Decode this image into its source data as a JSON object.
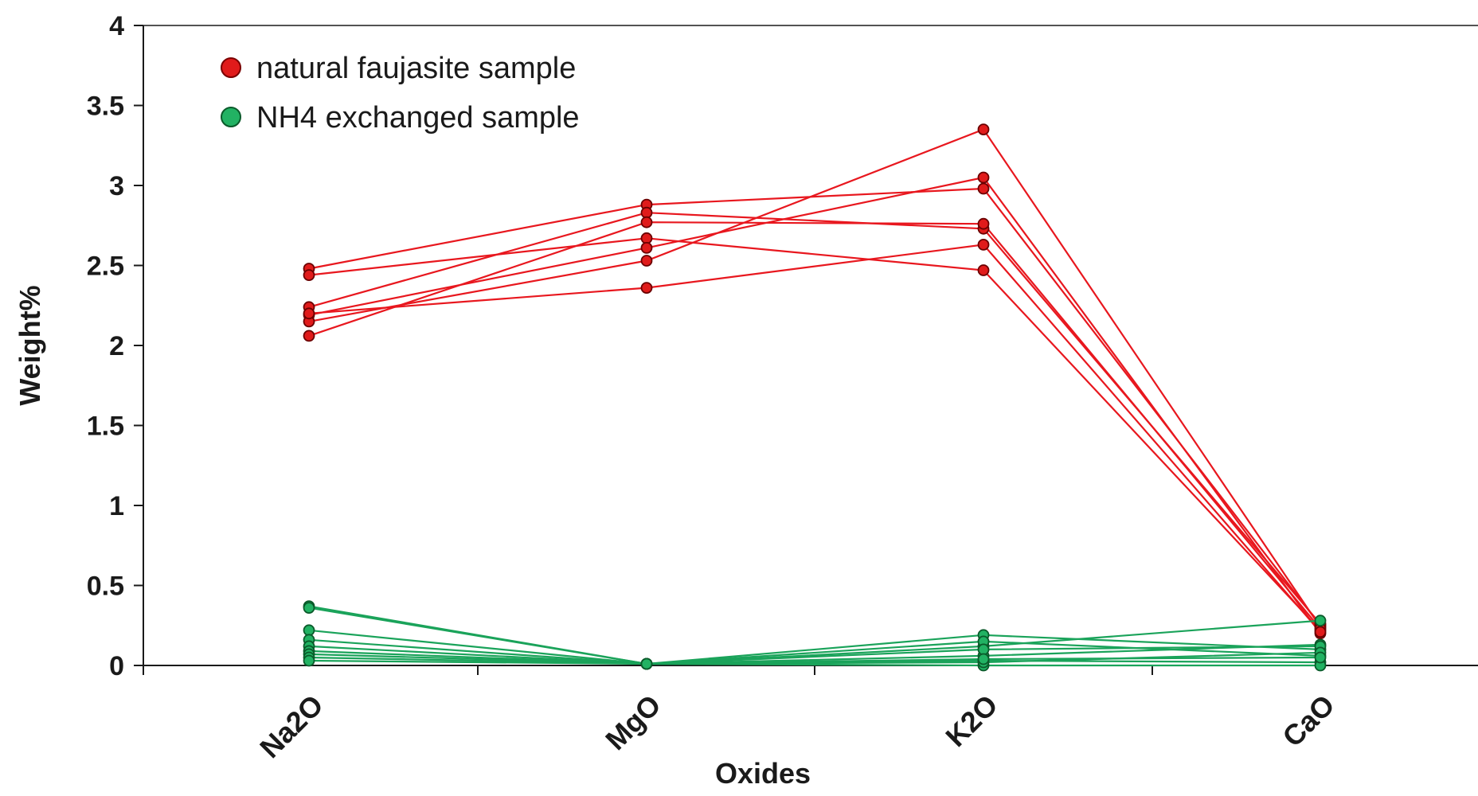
{
  "chart_data": {
    "type": "line",
    "xlabel": "Oxides",
    "ylabel": "Weight%",
    "categories": [
      "Na2O",
      "MgO",
      "K2O",
      "CaO"
    ],
    "ylim": [
      0,
      4
    ],
    "yticks": [
      "0",
      "0.5",
      "1",
      "1.5",
      "2",
      "2.5",
      "3",
      "3.5",
      "4"
    ],
    "grid": false,
    "legend_position": "top-left",
    "groups": [
      {
        "name": "natural faujasite sample",
        "color": "#e8171e",
        "marker_color": "#e01b1b",
        "series": [
          {
            "values": [
              2.48,
              2.88,
              2.98,
              0.25
            ]
          },
          {
            "values": [
              2.44,
              2.67,
              2.47,
              0.22
            ]
          },
          {
            "values": [
              2.24,
              2.83,
              2.73,
              0.26
            ]
          },
          {
            "values": [
              2.19,
              2.61,
              3.05,
              0.2
            ]
          },
          {
            "values": [
              2.15,
              2.53,
              3.35,
              0.24
            ]
          },
          {
            "values": [
              2.06,
              2.77,
              2.76,
              0.23
            ]
          },
          {
            "values": [
              2.2,
              2.36,
              2.63,
              0.21
            ]
          }
        ]
      },
      {
        "name": "NH4 exchanged sample",
        "color": "#1aa35a",
        "marker_color": "#22b263",
        "series": [
          {
            "values": [
              0.37,
              0.01,
              0.12,
              0.28
            ]
          },
          {
            "values": [
              0.36,
              0.01,
              0.06,
              0.13
            ]
          },
          {
            "values": [
              0.22,
              0.01,
              0.19,
              0.1
            ]
          },
          {
            "values": [
              0.16,
              0.01,
              0.15,
              0.06
            ]
          },
          {
            "values": [
              0.12,
              0.01,
              0.1,
              0.12
            ]
          },
          {
            "values": [
              0.09,
              0.01,
              0.03,
              0.02
            ]
          },
          {
            "values": [
              0.07,
              0.01,
              0.0,
              0.0
            ]
          },
          {
            "values": [
              0.05,
              0.01,
              0.02,
              0.08
            ]
          },
          {
            "values": [
              0.03,
              0.01,
              0.04,
              0.05
            ]
          }
        ]
      }
    ]
  }
}
